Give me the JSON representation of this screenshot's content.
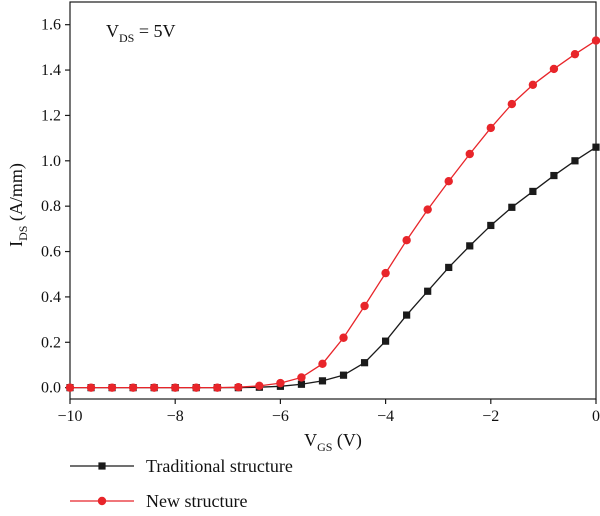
{
  "chart_data": {
    "type": "line",
    "annotation": {
      "main": "V",
      "sub": "DS",
      "rest": " = 5V"
    },
    "xlabel": {
      "main": "V",
      "sub": "GS",
      "rest": " (V)"
    },
    "ylabel": {
      "main": "I",
      "sub": "DS",
      "rest": " (A/mm)"
    },
    "xlim": [
      -10,
      0
    ],
    "ylim": [
      -0.05,
      1.7
    ],
    "xticks": [
      -10,
      -8,
      -6,
      -4,
      -2,
      0
    ],
    "xtick_labels": [
      "−10",
      "−8",
      "−6",
      "−4",
      "−2",
      "0"
    ],
    "yticks": [
      0.0,
      0.2,
      0.4,
      0.6,
      0.8,
      1.0,
      1.2,
      1.4,
      1.6
    ],
    "ytick_labels": [
      "0.0",
      "0.2",
      "0.4",
      "0.6",
      "0.8",
      "1.0",
      "1.2",
      "1.4",
      "1.6"
    ],
    "grid": false,
    "legend_position": "bottom",
    "x": [
      -10,
      -9.6,
      -9.2,
      -8.8,
      -8.4,
      -8.0,
      -7.6,
      -7.2,
      -6.8,
      -6.4,
      -6.0,
      -5.6,
      -5.2,
      -4.8,
      -4.4,
      -4.0,
      -3.6,
      -3.2,
      -2.8,
      -2.4,
      -2.0,
      -1.6,
      -1.2,
      -0.8,
      -0.4,
      0.0
    ],
    "series": [
      {
        "name": "Traditional structure",
        "color": "#1a1a1a",
        "marker": "square",
        "values": [
          0,
          0,
          0,
          0,
          0,
          0,
          0,
          0,
          0,
          0.002,
          0.006,
          0.015,
          0.03,
          0.055,
          0.11,
          0.205,
          0.32,
          0.425,
          0.53,
          0.625,
          0.715,
          0.795,
          0.865,
          0.935,
          1.0,
          1.06
        ]
      },
      {
        "name": "New structure",
        "color": "#e8252a",
        "marker": "circle",
        "values": [
          0,
          0,
          0,
          0,
          0,
          0,
          0,
          0,
          0.002,
          0.008,
          0.02,
          0.045,
          0.105,
          0.22,
          0.36,
          0.505,
          0.65,
          0.785,
          0.91,
          1.03,
          1.145,
          1.25,
          1.335,
          1.405,
          1.47,
          1.53
        ]
      }
    ]
  }
}
